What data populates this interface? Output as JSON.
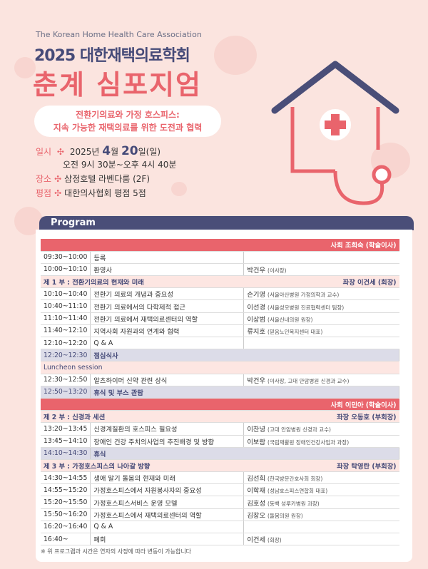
{
  "header": {
    "association": "The Korean Home Health Care Association",
    "title_line1": "2025 대한재택의료학회",
    "title_line2": "춘계 심포지엄",
    "theme_line1": "전환기의료와 가정 호스피스:",
    "theme_line2": "지속 가능한 재택의료를 위한 도전과 협력"
  },
  "info": {
    "date_label": "일시",
    "date_prefix": "2025년",
    "month": "4",
    "month_unit": "월",
    "day": "20",
    "day_suffix": "일(일)",
    "time": "오전 9시 30분~오후 4시 40분",
    "venue_label": "장소",
    "venue": "삼정호텔 라벤다룸 (2F)",
    "credit_label": "평점",
    "credit": "대한의사협회 평점 5점",
    "bullet": "✣"
  },
  "program": {
    "title": "Program",
    "rows": [
      {
        "type": "mod",
        "text": "사회 조희숙 (학술이사)"
      },
      {
        "type": "normal",
        "time": "09:30~10:00",
        "title": "등록",
        "speaker": "",
        "aff": ""
      },
      {
        "type": "normal",
        "time": "10:00~10:10",
        "title": "환영사",
        "speaker": "박건우",
        "aff": "(이사장)"
      },
      {
        "type": "part",
        "left": "제 1 부 : 전환기의료의 현재와 미래",
        "right": "좌장 이건세 (회장)"
      },
      {
        "type": "normal",
        "time": "10:10~10:40",
        "title": "전환기 의료의 개념과 중요성",
        "speaker": "손기영",
        "aff": "(서울아산병원 가정의학과 교수)"
      },
      {
        "type": "normal",
        "time": "10:40~11:10",
        "title": "전환기 의료에서의 다학제적 접근",
        "speaker": "이선경",
        "aff": "(서울성모병원 진료협력센터 팀장)"
      },
      {
        "type": "normal",
        "time": "11:10~11:40",
        "title": "전환기 의료에서 재택의료센터의 역할",
        "speaker": "이상범",
        "aff": "(서울신내의원 원장)"
      },
      {
        "type": "normal",
        "time": "11:40~12:10",
        "title": "지역사회 자원과의 연계와 협력",
        "speaker": "류지호",
        "aff": "(믿음노인복지센터 대표)"
      },
      {
        "type": "normal",
        "time": "12:10~12:20",
        "title": "Q & A",
        "speaker": "",
        "aff": ""
      },
      {
        "type": "brk",
        "time": "12:20~12:30",
        "title": "점심식사"
      },
      {
        "type": "lunch",
        "text": "Luncheon session"
      },
      {
        "type": "normal",
        "time": "12:30~12:50",
        "title": "알츠하이머 신약 관련 상식",
        "speaker": "박건우",
        "aff": "(이사장, 고대 안암병원 신경과 교수)"
      },
      {
        "type": "brk",
        "time": "12:50~13:20",
        "title": "휴식 및 부스 관람"
      },
      {
        "type": "mod",
        "text": "사회 이민아 (학술이사)"
      },
      {
        "type": "part",
        "left": "제 2 부 : 신경과 세션",
        "right": "좌장 오동호 (부회장)"
      },
      {
        "type": "normal",
        "time": "13:20~13:45",
        "title": "신경계질환의 호스피스 필요성",
        "speaker": "이찬녕",
        "aff": "(고대 안암병원 신경과 교수)"
      },
      {
        "type": "normal",
        "time": "13:45~14:10",
        "title": "장애인 건강 주치의사업의 추진배경 및 방향",
        "speaker": "이보람",
        "aff": "(국립재활원 장애인건강사업과 과장)"
      },
      {
        "type": "brk",
        "time": "14:10~14:30",
        "title": "휴식"
      },
      {
        "type": "part",
        "left": "제 3 부 : 가정호스피스의 나아갈 방향",
        "right": "좌장 탁영란 (부회장)"
      },
      {
        "type": "normal",
        "time": "14:30~14:55",
        "title": "생애 말기 돌봄의 현재와 미래",
        "speaker": "김선희",
        "aff": "(한국방문간호사회 회장)"
      },
      {
        "type": "normal",
        "time": "14:55~15:20",
        "title": "가정호스피스에서 자원봉사자의 중요성",
        "speaker": "이학재",
        "aff": "(성남호스피스연합회 대표)"
      },
      {
        "type": "normal",
        "time": "15:20~15:50",
        "title": "가정호스피스서비스 운영 모델",
        "speaker": "김호성",
        "aff": "(동백 성루카병원 과장)"
      },
      {
        "type": "normal",
        "time": "15:50~16:20",
        "title": "가정호스피스에서 재택의료센터의 역할",
        "speaker": "김창오",
        "aff": "(돌봄의원 원장)"
      },
      {
        "type": "normal",
        "time": "16:20~16:40",
        "title": "Q & A",
        "speaker": "",
        "aff": ""
      },
      {
        "type": "normal",
        "time": "16:40~",
        "title": "폐회",
        "speaker": "이건세",
        "aff": "(회장)"
      }
    ],
    "note": "※ 위 프로그램과 시간은 연자의 사정에 따라 변동이 가능합니다"
  },
  "colors": {
    "accent": "#e9646c",
    "navy": "#454a78",
    "background": "#fbe4df"
  }
}
